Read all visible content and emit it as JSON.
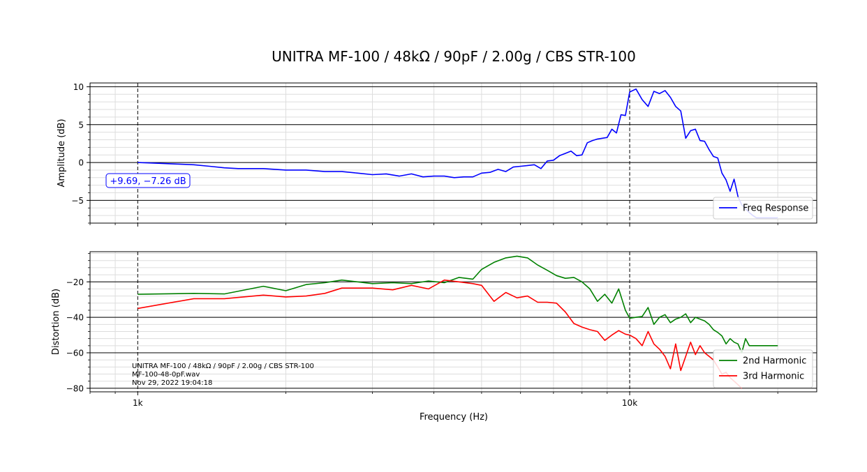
{
  "title": "UNITRA MF-100 / 48kΩ / 90pF / 2.00g / CBS STR-100",
  "xlabel": "Frequency (Hz)",
  "chart_data": [
    {
      "type": "line",
      "id": "response",
      "ylabel": "Amplitude (dB)",
      "xscale": "log",
      "xlim": [
        800,
        24000
      ],
      "ylim": [
        -8,
        10.5
      ],
      "yticks": [
        10,
        5,
        0,
        -5
      ],
      "ytick_labels": [
        "10",
        "5",
        "0",
        "−5"
      ],
      "xticks": [
        1000,
        10000
      ],
      "xtick_labels": [
        "1k",
        "10k"
      ],
      "grid": true,
      "legend": "lower-right",
      "annotation": "+9.69, −7.26 dB",
      "series": [
        {
          "name": "Freq Response",
          "color": "#0000ff",
          "x": [
            1000,
            1100,
            1200,
            1300,
            1400,
            1500,
            1600,
            1800,
            2000,
            2200,
            2400,
            2600,
            2800,
            3000,
            3200,
            3400,
            3600,
            3800,
            4000,
            4200,
            4400,
            4600,
            4800,
            5000,
            5200,
            5400,
            5600,
            5800,
            6000,
            6200,
            6400,
            6600,
            6800,
            7000,
            7200,
            7400,
            7600,
            7800,
            8000,
            8200,
            8400,
            8600,
            8800,
            9000,
            9200,
            9400,
            9600,
            9800,
            10000,
            10300,
            10600,
            10900,
            11200,
            11500,
            11800,
            12100,
            12400,
            12700,
            13000,
            13300,
            13600,
            13900,
            14200,
            14500,
            14800,
            15100,
            15400,
            15700,
            16000,
            16300,
            16600,
            16900,
            17200,
            17500,
            17800,
            18100,
            18400,
            18700,
            19000,
            19300,
            19600,
            19900,
            20000
          ],
          "values": [
            0.0,
            -0.1,
            -0.2,
            -0.3,
            -0.5,
            -0.7,
            -0.8,
            -0.8,
            -1.0,
            -1.0,
            -1.2,
            -1.2,
            -1.4,
            -1.6,
            -1.5,
            -1.8,
            -1.5,
            -1.9,
            -1.8,
            -1.8,
            -2.0,
            -1.9,
            -1.9,
            -1.4,
            -1.3,
            -0.9,
            -1.2,
            -0.6,
            -0.5,
            -0.4,
            -0.3,
            -0.8,
            0.2,
            0.3,
            0.9,
            1.2,
            1.5,
            0.9,
            1.0,
            2.6,
            2.9,
            3.1,
            3.2,
            3.3,
            4.4,
            3.9,
            6.3,
            6.2,
            9.3,
            9.7,
            8.3,
            7.4,
            9.4,
            9.1,
            9.5,
            8.6,
            7.4,
            6.8,
            3.2,
            4.2,
            4.4,
            2.9,
            2.8,
            1.7,
            0.8,
            0.6,
            -1.4,
            -2.3,
            -3.8,
            -2.2,
            -4.5,
            -5.6,
            -6.1,
            -6.6,
            -7.0,
            -7.3,
            -7.3,
            -7.3,
            -7.3,
            -7.3,
            -7.3,
            -7.3,
            -7.26
          ]
        }
      ]
    },
    {
      "type": "line",
      "id": "distortion",
      "ylabel": "Distortion (dB)",
      "xscale": "log",
      "xlim": [
        800,
        24000
      ],
      "ylim": [
        -82,
        -3
      ],
      "yticks": [
        -20,
        -40,
        -60,
        -80
      ],
      "ytick_labels": [
        "−20",
        "−40",
        "−60",
        "−80"
      ],
      "xticks": [
        1000,
        10000
      ],
      "xtick_labels": [
        "1k",
        "10k"
      ],
      "grid": true,
      "legend": "lower-right",
      "info_lines": [
        "UNITRA MF-100 / 48kΩ / 90pF / 2.00g / CBS STR-100",
        "MF-100-48-0pF.wav",
        "Nov 29, 2022 19:04:18"
      ],
      "series": [
        {
          "name": "2nd Harmonic",
          "color": "#008000",
          "x": [
            1000,
            1300,
            1500,
            1800,
            2000,
            2200,
            2400,
            2600,
            2800,
            3000,
            3300,
            3600,
            3900,
            4200,
            4500,
            4800,
            5000,
            5300,
            5600,
            5900,
            6200,
            6500,
            6800,
            7100,
            7400,
            7700,
            8000,
            8300,
            8600,
            8900,
            9200,
            9500,
            9800,
            10000,
            10300,
            10600,
            10900,
            11200,
            11500,
            11800,
            12100,
            12400,
            12700,
            13000,
            13300,
            13600,
            13900,
            14200,
            14500,
            14800,
            15100,
            15400,
            15700,
            16000,
            16300,
            16600,
            16900,
            17200,
            17500,
            17800,
            18100,
            18400,
            18700,
            19000,
            19300,
            19600,
            19900,
            20000
          ],
          "values": [
            -27.0,
            -26.5,
            -26.8,
            -22.5,
            -25.0,
            -21.5,
            -20.5,
            -19.0,
            -20.0,
            -21.0,
            -20.5,
            -21.0,
            -19.5,
            -20.5,
            -17.5,
            -18.5,
            -13.0,
            -9.0,
            -6.5,
            -5.5,
            -6.5,
            -10.5,
            -13.5,
            -16.5,
            -18.0,
            -17.5,
            -20.0,
            -24.0,
            -31.0,
            -27.0,
            -32.0,
            -24.0,
            -36.0,
            -40.5,
            -40.0,
            -39.5,
            -34.5,
            -44.0,
            -40.0,
            -38.5,
            -43.0,
            -41.0,
            -40.0,
            -38.0,
            -43.0,
            -40.0,
            -41.0,
            -42.0,
            -44.0,
            -47.0,
            -48.5,
            -50.5,
            -55.0,
            -52.0,
            -54.0,
            -55.0,
            -60.0,
            -52.0,
            -56.0,
            -56.0,
            -56.0,
            -56.0,
            -56.0,
            -56.0,
            -56.0,
            -56.0,
            -56.0,
            -56.0
          ]
        },
        {
          "name": "3rd Harmonic",
          "color": "#ff0000",
          "x": [
            1000,
            1300,
            1500,
            1800,
            2000,
            2200,
            2400,
            2600,
            2800,
            3000,
            3300,
            3600,
            3900,
            4200,
            4500,
            4800,
            5000,
            5300,
            5600,
            5900,
            6200,
            6500,
            6800,
            7100,
            7400,
            7700,
            8000,
            8300,
            8600,
            8900,
            9200,
            9500,
            9800,
            10000,
            10300,
            10600,
            10900,
            11200,
            11500,
            11800,
            12100,
            12400,
            12700,
            13000,
            13300,
            13600,
            13900,
            14200,
            14500,
            14800,
            15100,
            15400,
            15700,
            16000,
            16300,
            16600,
            16900
          ],
          "values": [
            -35.0,
            -29.5,
            -29.5,
            -27.5,
            -28.5,
            -28.0,
            -26.5,
            -23.5,
            -23.5,
            -23.5,
            -24.5,
            -22.0,
            -24.0,
            -19.0,
            -20.0,
            -21.0,
            -22.0,
            -31.0,
            -26.0,
            -29.0,
            -28.0,
            -31.5,
            -31.5,
            -32.0,
            -37.0,
            -43.5,
            -45.5,
            -47.0,
            -48.0,
            -53.0,
            -50.0,
            -47.5,
            -49.5,
            -50.0,
            -52.0,
            -56.0,
            -48.0,
            -55.0,
            -58.0,
            -62.0,
            -69.0,
            -55.0,
            -70.0,
            -62.0,
            -54.0,
            -61.0,
            -56.0,
            -60.0,
            -62.0,
            -64.0,
            -68.0,
            -72.0,
            -71.0,
            -74.0,
            -76.0,
            -78.0,
            -80.0
          ]
        }
      ]
    }
  ]
}
